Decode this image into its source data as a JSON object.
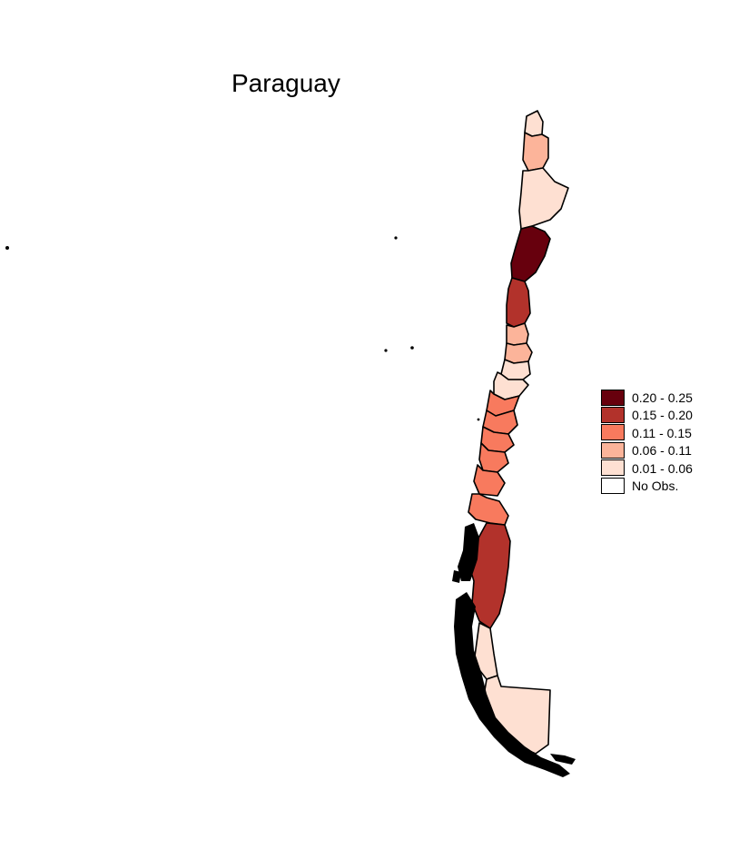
{
  "title": "Paraguay",
  "legend": {
    "items": [
      {
        "label": "0.20 - 0.25",
        "color": "#67000d"
      },
      {
        "label": "0.15 - 0.20",
        "color": "#b2322b"
      },
      {
        "label": "0.11 - 0.15",
        "color": "#f87a5e"
      },
      {
        "label": "0.06 - 0.11",
        "color": "#fcb49a"
      },
      {
        "label": "0.01 - 0.06",
        "color": "#fee0d2"
      },
      {
        "label": "No Obs.",
        "color": "#ffffff"
      }
    ]
  },
  "regions": [
    {
      "id": "north-tip",
      "class": "0.01 - 0.06"
    },
    {
      "id": "north-2",
      "class": "0.06 - 0.11"
    },
    {
      "id": "north-3",
      "class": "0.01 - 0.06"
    },
    {
      "id": "north-4",
      "class": "0.20 - 0.25"
    },
    {
      "id": "north-5",
      "class": "0.15 - 0.20"
    },
    {
      "id": "center-1",
      "class": "0.06 - 0.11"
    },
    {
      "id": "center-2",
      "class": "0.06 - 0.11"
    },
    {
      "id": "center-3",
      "class": "0.01 - 0.06"
    },
    {
      "id": "center-4",
      "class": "0.01 - 0.06"
    },
    {
      "id": "center-5",
      "class": "0.11 - 0.15"
    },
    {
      "id": "center-6",
      "class": "0.11 - 0.15"
    },
    {
      "id": "center-7",
      "class": "0.11 - 0.15"
    },
    {
      "id": "south-1",
      "class": "0.11 - 0.15"
    },
    {
      "id": "south-2",
      "class": "0.11 - 0.15"
    },
    {
      "id": "south-3",
      "class": "0.15 - 0.20"
    },
    {
      "id": "south-4",
      "class": "0.01 - 0.06"
    },
    {
      "id": "south-5",
      "class": "0.01 - 0.06"
    }
  ]
}
